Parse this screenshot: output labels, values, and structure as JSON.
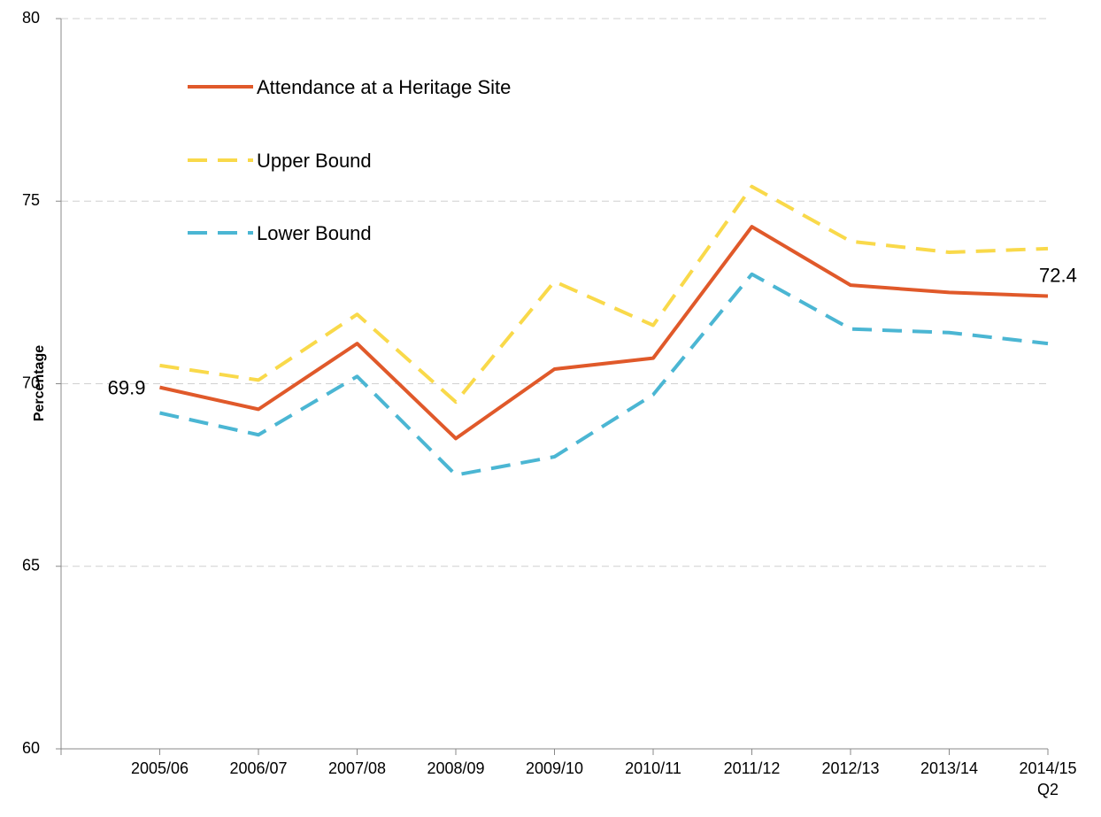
{
  "chart_data": {
    "type": "line",
    "y_label": "Percentage",
    "categories": [
      "2005/06",
      "2006/07",
      "2007/08",
      "2008/09",
      "2009/10",
      "2010/11",
      "2011/12",
      "2012/13",
      "2013/14",
      "2014/15 Q2"
    ],
    "series": [
      {
        "name": "Attendance at a Heritage Site",
        "color": "#e0592a",
        "dash": false,
        "values": [
          69.9,
          69.3,
          71.1,
          68.5,
          70.4,
          70.7,
          74.3,
          72.7,
          72.5,
          72.4
        ]
      },
      {
        "name": "Upper Bound",
        "color": "#f9d94a",
        "dash": true,
        "values": [
          70.5,
          70.1,
          71.9,
          69.5,
          72.8,
          71.6,
          75.4,
          73.9,
          73.6,
          73.7
        ]
      },
      {
        "name": "Lower Bound",
        "color": "#4bb6d3",
        "dash": true,
        "values": [
          69.2,
          68.6,
          70.2,
          67.5,
          68.0,
          69.7,
          73.0,
          71.5,
          71.4,
          71.1
        ]
      }
    ],
    "ylim": [
      60,
      80
    ],
    "yticks": [
      60,
      65,
      70,
      75,
      80
    ],
    "grid": true,
    "legend": "upper left"
  }
}
